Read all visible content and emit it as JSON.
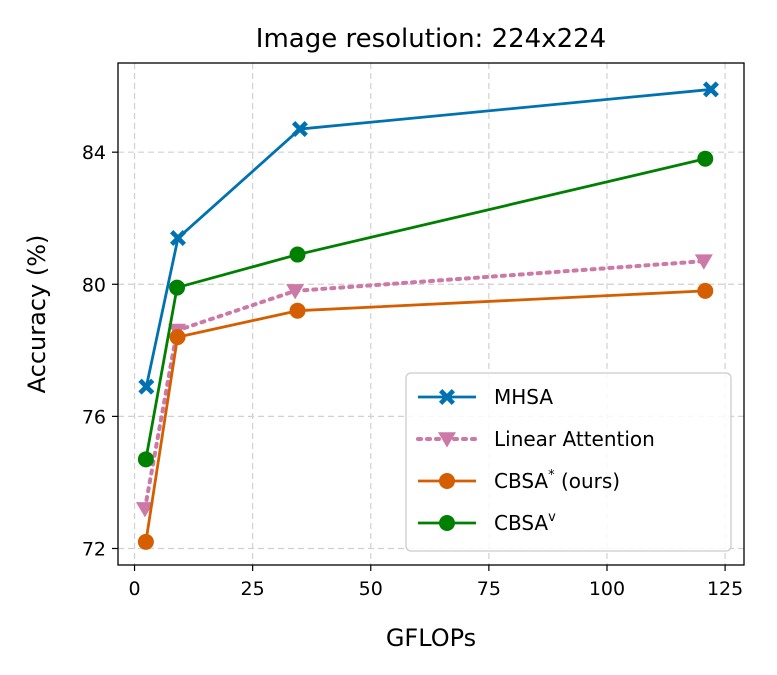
{
  "chart_data": {
    "type": "line",
    "title": "Image resolution: 224x224",
    "xlabel": "GFLOPs",
    "ylabel": "Accuracy (%)",
    "xlim": [
      -3.5,
      129
    ],
    "ylim": [
      71.5,
      86.7
    ],
    "xticks": [
      "0",
      "25",
      "50",
      "75",
      "100",
      "125"
    ],
    "yticks": [
      "72",
      "76",
      "80",
      "84"
    ],
    "grid": true,
    "legend_position": "lower-right",
    "series": [
      {
        "name": "MHSA",
        "color": "#0072b2",
        "line": "solid",
        "marker": "x",
        "x": [
          2.5,
          9.2,
          35.0,
          122.0
        ],
        "y": [
          76.9,
          81.4,
          84.7,
          85.9
        ]
      },
      {
        "name": "Linear Attention",
        "color": "#cc79a7",
        "line": "dotted",
        "marker": "triangle-down",
        "x": [
          2.2,
          9.0,
          34.0,
          120.5
        ],
        "y": [
          73.2,
          78.6,
          79.8,
          80.7
        ]
      },
      {
        "name": "CBSA",
        "name_sup": "*",
        "name_suffix": " (ours)",
        "color": "#d55e00",
        "line": "solid",
        "marker": "circle",
        "x": [
          2.4,
          9.1,
          34.5,
          120.8
        ],
        "y": [
          72.2,
          78.4,
          79.2,
          79.8
        ]
      },
      {
        "name": "CBSA",
        "name_sup": "v",
        "name_suffix": "",
        "color": "#008000",
        "line": "solid",
        "marker": "circle",
        "x": [
          2.4,
          9.0,
          34.5,
          120.8
        ],
        "y": [
          74.7,
          79.9,
          80.9,
          83.8
        ]
      }
    ]
  }
}
